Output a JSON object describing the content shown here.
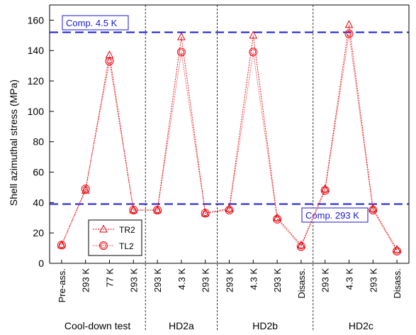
{
  "chart_data": {
    "type": "line",
    "ylabel": "Shell azimuthal stress (MPa)",
    "ylim": [
      0,
      170
    ],
    "yticks": [
      0,
      20,
      40,
      60,
      80,
      100,
      120,
      140,
      160
    ],
    "categories": [
      "Pre-ass.",
      "293 K",
      "77 K",
      "293 K",
      "293 K",
      "4.3 K",
      "293 K",
      "293 K",
      "4.3 K",
      "293 K",
      "Disass.",
      "293 K",
      "4.3 K",
      "293 K",
      "Disass."
    ],
    "groups": [
      {
        "label": "Cool-down test",
        "from": 0,
        "to": 3
      },
      {
        "label": "HD2a",
        "from": 4,
        "to": 6
      },
      {
        "label": "HD2b",
        "from": 7,
        "to": 10
      },
      {
        "label": "HD2c",
        "from": 11,
        "to": 14
      }
    ],
    "series": [
      {
        "name": "TR2",
        "marker": "triangle",
        "color": "#e8000b",
        "values": [
          12,
          48,
          137,
          35,
          35,
          149,
          33,
          36,
          150,
          30,
          12,
          49,
          157,
          36,
          9
        ]
      },
      {
        "name": "TL2",
        "marker": "circle",
        "color": "#e8000b",
        "values": [
          12,
          49,
          133,
          35,
          35,
          139,
          33,
          35,
          139,
          29,
          11,
          48,
          151,
          35,
          8
        ]
      }
    ],
    "reference_lines": [
      {
        "label": "Comp. 4.5 K",
        "value": 152,
        "color": "#1a1ad6"
      },
      {
        "label": "Comp. 293 K",
        "value": 39,
        "color": "#1a1ad6"
      }
    ],
    "legend_position": "bottom-left",
    "grid": false
  }
}
